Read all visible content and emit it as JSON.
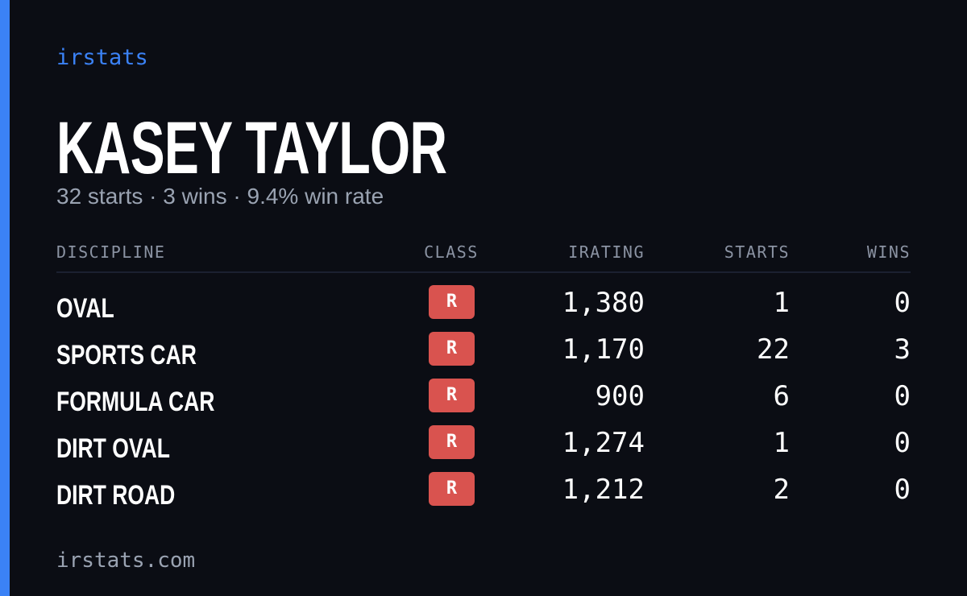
{
  "brand": "irstats",
  "driver": {
    "name": "KASEY TAYLOR",
    "summary": "32 starts · 3 wins · 9.4% win rate"
  },
  "table": {
    "headers": [
      "DISCIPLINE",
      "CLASS",
      "IRATING",
      "STARTS",
      "WINS"
    ],
    "rows": [
      [
        "OVAL",
        "R",
        "1,380",
        "1",
        "0"
      ],
      [
        "SPORTS CAR",
        "R",
        "1,170",
        "22",
        "3"
      ],
      [
        "FORMULA CAR",
        "R",
        "900",
        "6",
        "0"
      ],
      [
        "DIRT OVAL",
        "R",
        "1,274",
        "1",
        "0"
      ],
      [
        "DIRT ROAD",
        "R",
        "1,212",
        "2",
        "0"
      ]
    ]
  },
  "footer": "irstats.com"
}
